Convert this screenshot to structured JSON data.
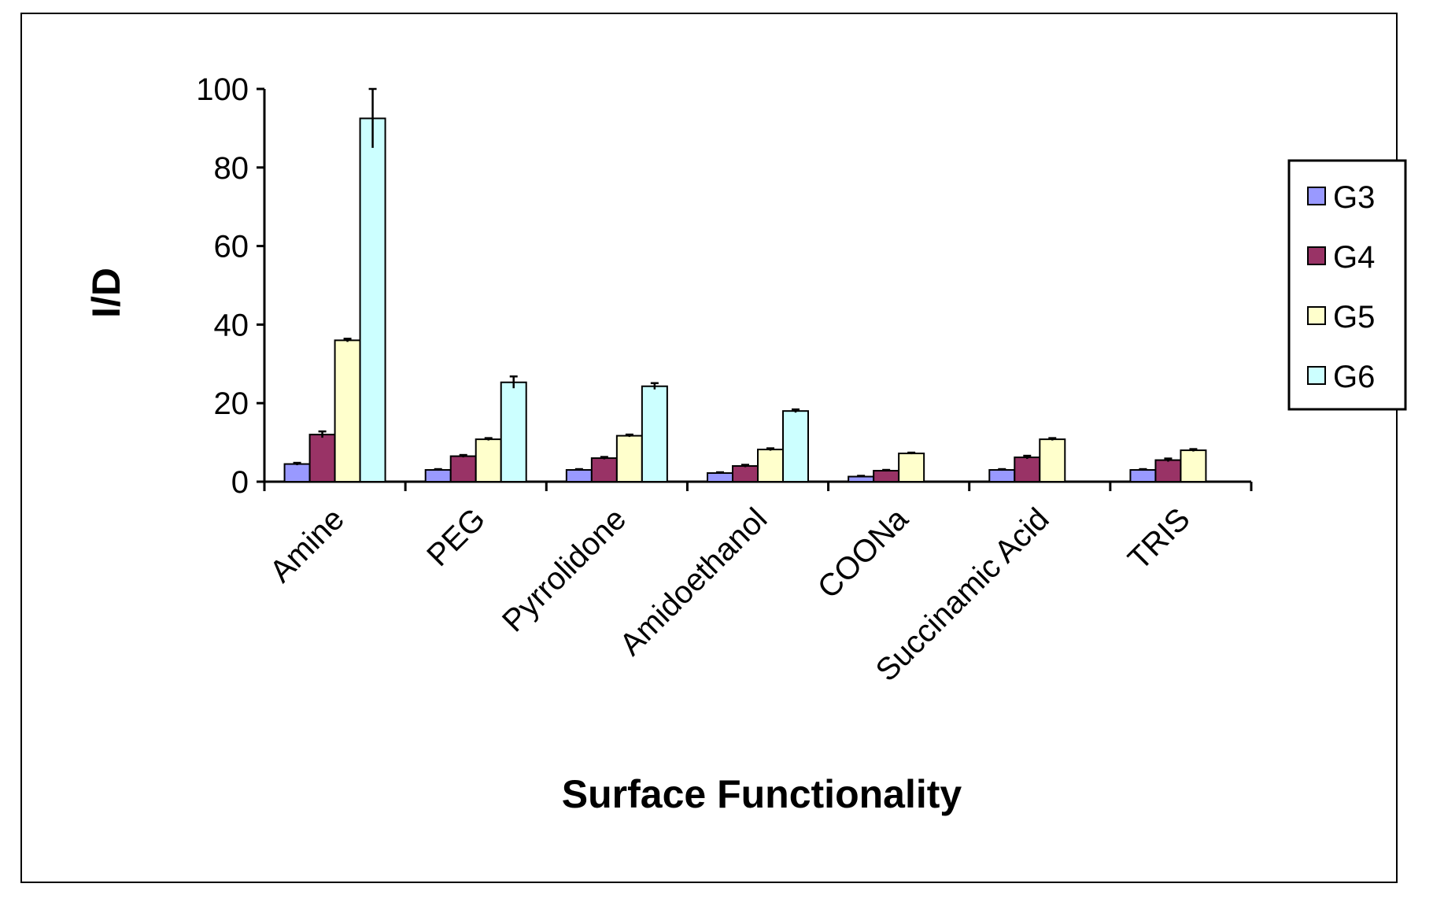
{
  "chart_data": {
    "type": "bar",
    "title": "",
    "xlabel": "Surface Functionality",
    "ylabel": "I/D",
    "ylim": [
      0,
      100
    ],
    "yticks": [
      0,
      20,
      40,
      60,
      80,
      100
    ],
    "grid": false,
    "legend_position": "right",
    "categories": [
      "Amine",
      "PEG",
      "Pyrrolidone",
      "Amidoethanol",
      "COONa",
      "Succinamic Acid",
      "TRIS"
    ],
    "series": [
      {
        "name": "G3",
        "color": "#9999ff",
        "values": [
          4.5,
          3,
          3,
          2.2,
          1.3,
          3,
          3
        ],
        "errors": [
          0.3,
          0.2,
          0.2,
          0.2,
          0.2,
          0.2,
          0.2
        ]
      },
      {
        "name": "G4",
        "color": "#993366",
        "values": [
          12,
          6.5,
          6,
          4,
          2.8,
          6.2,
          5.5
        ],
        "errors": [
          0.8,
          0.3,
          0.3,
          0.3,
          0.2,
          0.4,
          0.4
        ]
      },
      {
        "name": "G5",
        "color": "#ffffcc",
        "values": [
          36,
          10.8,
          11.7,
          8.2,
          7.2,
          10.8,
          8
        ],
        "errors": [
          0.4,
          0.3,
          0.3,
          0.3,
          0.2,
          0.3,
          0.3
        ]
      },
      {
        "name": "G6",
        "color": "#ccffff",
        "values": [
          92.5,
          25.3,
          24.3,
          18,
          null,
          null,
          null
        ],
        "errors": [
          7.5,
          1.5,
          0.8,
          0.4,
          null,
          null,
          null
        ]
      }
    ]
  }
}
